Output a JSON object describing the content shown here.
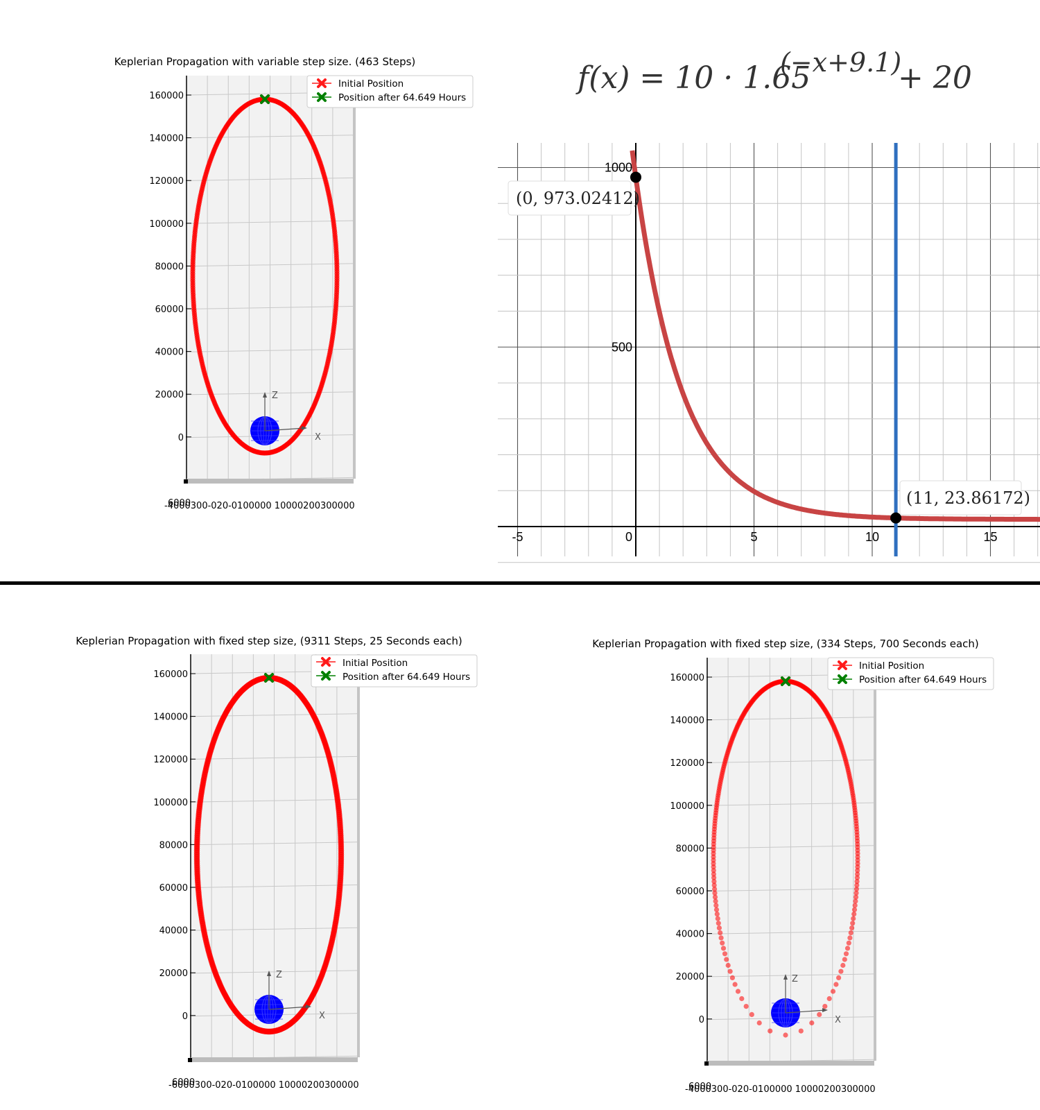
{
  "formula": {
    "lhs": "f(x) = 10 · 1.65",
    "exponent": "(−x+9.1)",
    "tail": " + 20"
  },
  "legend": {
    "initial": "Initial Position",
    "after": "Position after 64.649 Hours"
  },
  "colors": {
    "orbit": "#ff0000",
    "start_marker": "#ff1a1a",
    "end_marker": "#008000",
    "earth": "#0000ff",
    "curve": "#c84444",
    "vline": "#2f6fbf",
    "pane": "#f2f2f2"
  },
  "chart_data": [
    {
      "type": "scatter",
      "title": "Keplerian Propagation with variable step size. (463 Steps)",
      "yticks": [
        "160000",
        "140000",
        "120000",
        "100000",
        "80000",
        "60000",
        "40000",
        "20000",
        "0"
      ],
      "xtick_text": "-4000300-020-0100000 10000200300000",
      "origin_label": "6000",
      "axis_labels": [
        "X",
        "Z"
      ],
      "series": [
        {
          "name": "Initial Position",
          "marker": "x",
          "color": "#ff1a1a"
        },
        {
          "name": "Position after 64.649 Hours",
          "marker": "x",
          "color": "#008000"
        }
      ],
      "orbit": {
        "steps": 463,
        "x_semi_axis": 34000,
        "z_min": -7000,
        "z_max": 157000
      }
    },
    {
      "type": "line",
      "title": "",
      "xlim": [
        -6,
        17
      ],
      "ylim": [
        -170,
        1100
      ],
      "x_ticks": [
        "-5",
        "0",
        "5",
        "10",
        "15"
      ],
      "y_ticks": [
        "1000",
        "500"
      ],
      "function": {
        "a": 10,
        "b": 1.65,
        "shift": 9.1,
        "c": 20
      },
      "vertical_line_x": 11,
      "points": [
        {
          "x": 0,
          "y": 973.02412,
          "label": "(0, 973.02412)"
        },
        {
          "x": 11,
          "y": 23.86172,
          "label": "(11, 23.86172)"
        }
      ]
    },
    {
      "type": "scatter",
      "title": "Keplerian Propagation with fixed step size, (9311 Steps, 25 Seconds each)",
      "yticks": [
        "160000",
        "140000",
        "120000",
        "100000",
        "80000",
        "60000",
        "40000",
        "20000",
        "0"
      ],
      "xtick_text": "-6000300-020-0100000 10000200300000",
      "origin_label": "6000",
      "axis_labels": [
        "X",
        "Z"
      ],
      "series": [
        {
          "name": "Initial Position",
          "marker": "x",
          "color": "#ff1a1a"
        },
        {
          "name": "Position after 64.649 Hours",
          "marker": "x",
          "color": "#008000"
        }
      ],
      "orbit": {
        "steps": 9311,
        "step_seconds": 25,
        "x_semi_axis": 34000,
        "z_min": -7000,
        "z_max": 157000
      }
    },
    {
      "type": "scatter",
      "title": "Keplerian Propagation with fixed step size, (334 Steps, 700 Seconds each)",
      "yticks": [
        "160000",
        "140000",
        "120000",
        "100000",
        "80000",
        "60000",
        "40000",
        "20000",
        "0"
      ],
      "xtick_text": "-4000300-020-0100000 10000200300000",
      "origin_label": "6000",
      "axis_labels": [
        "X",
        "Z"
      ],
      "series": [
        {
          "name": "Initial Position",
          "marker": "x",
          "color": "#ff1a1a"
        },
        {
          "name": "Position after 64.649 Hours",
          "marker": "x",
          "color": "#008000"
        }
      ],
      "orbit": {
        "steps": 334,
        "step_seconds": 700,
        "x_semi_axis": 34000,
        "z_min": -7000,
        "z_max": 157000
      }
    }
  ]
}
